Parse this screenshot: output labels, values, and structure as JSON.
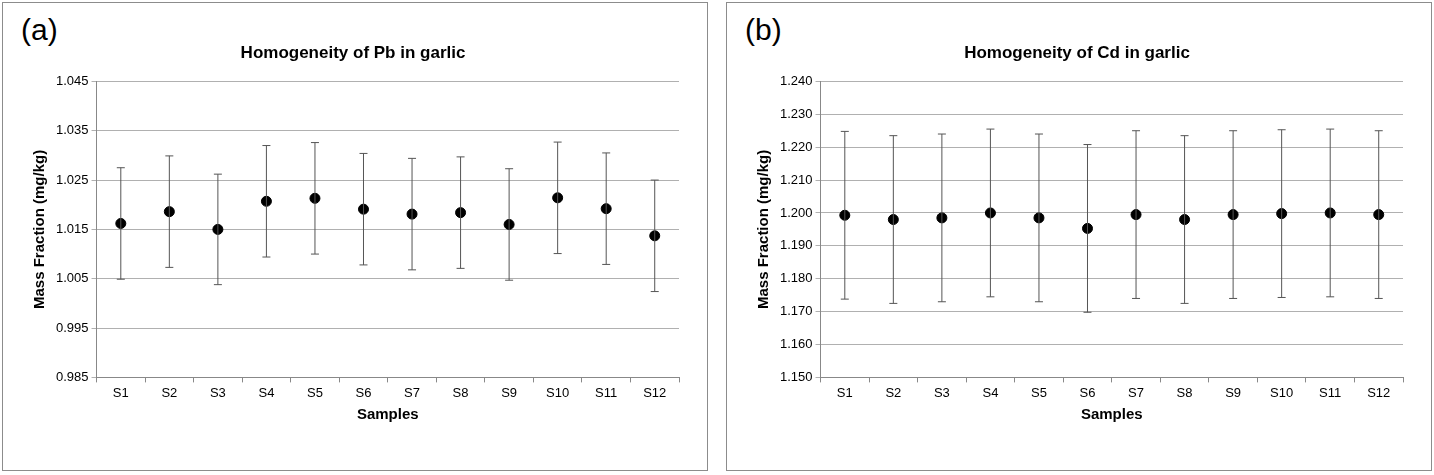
{
  "chart_data": [
    {
      "type": "scatter",
      "panel_label": "(a)",
      "title": "Homogeneity of Pb in garlic",
      "x_label": "Samples",
      "y_label": "Mass Fraction (mg/kg)",
      "categories": [
        "S1",
        "S2",
        "S3",
        "S4",
        "S5",
        "S6",
        "S7",
        "S8",
        "S9",
        "S10",
        "S11",
        "S12"
      ],
      "values": [
        1.0162,
        1.0186,
        1.015,
        1.0207,
        1.0213,
        1.0191,
        1.0181,
        1.0184,
        1.016,
        1.0214,
        1.0192,
        1.0137
      ],
      "errors": [
        0.0113,
        0.0113,
        0.0112,
        0.0113,
        0.0113,
        0.0113,
        0.0113,
        0.0113,
        0.0113,
        0.0113,
        0.0113,
        0.0113
      ],
      "color": "#000000",
      "marker": "circle",
      "ylim": [
        0.985,
        1.045
      ],
      "yticks": [
        0.985,
        0.995,
        1.005,
        1.015,
        1.025,
        1.035,
        1.045
      ],
      "grid": true
    },
    {
      "type": "scatter",
      "panel_label": "(b)",
      "title": "Homogeneity of Cd in garlic",
      "x_label": "Samples",
      "y_label": "Mass Fraction (mg/kg)",
      "categories": [
        "S1",
        "S2",
        "S3",
        "S4",
        "S5",
        "S6",
        "S7",
        "S8",
        "S9",
        "S10",
        "S11",
        "S12"
      ],
      "values": [
        1.1993,
        1.198,
        1.1985,
        1.2,
        1.1985,
        1.1953,
        1.1995,
        1.198,
        1.1995,
        1.1998,
        1.2,
        1.1995
      ],
      "errors": [
        0.0255,
        0.0255,
        0.0255,
        0.0255,
        0.0255,
        0.0255,
        0.0255,
        0.0255,
        0.0255,
        0.0255,
        0.0255,
        0.0255
      ],
      "color": "#000000",
      "marker": "circle",
      "ylim": [
        1.15,
        1.24
      ],
      "yticks": [
        {
          "value": 1.15,
          "label": "1.150"
        },
        {
          "value": 1.16,
          "label": "1.160"
        },
        {
          "value": 1.17,
          "label": "1.170"
        },
        {
          "value": 1.18,
          "label": "1.180"
        },
        {
          "value": 1.19,
          "label": "1.190"
        },
        {
          "value": 1.2,
          "label": "1.200"
        },
        {
          "value": 1.21,
          "label": "1.210"
        },
        {
          "value": 1.22,
          "label": "1.220"
        },
        {
          "value": 1.23,
          "label": "1.230"
        },
        {
          "value": 1.24,
          "label": "1.240"
        }
      ],
      "grid": true
    }
  ]
}
